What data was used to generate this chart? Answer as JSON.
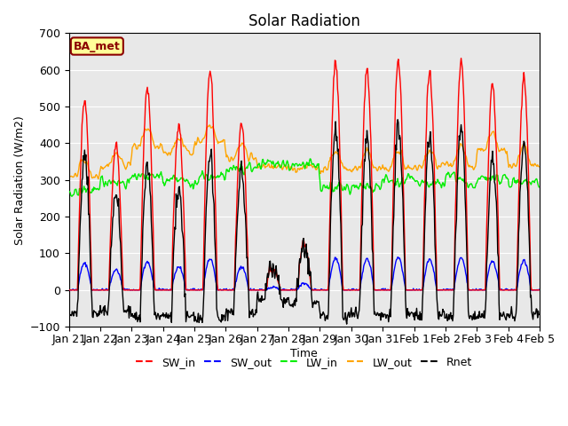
{
  "title": "Solar Radiation",
  "ylabel": "Solar Radiation (W/m2)",
  "xlabel": "Time",
  "ylim": [
    -100,
    700
  ],
  "yticks": [
    -100,
    0,
    100,
    200,
    300,
    400,
    500,
    600,
    700
  ],
  "legend_label": "BA_met",
  "series": {
    "SW_in": {
      "color": "#FF0000",
      "lw": 1.0
    },
    "SW_out": {
      "color": "#0000FF",
      "lw": 1.0
    },
    "LW_in": {
      "color": "#00EE00",
      "lw": 1.0
    },
    "LW_out": {
      "color": "#FFA500",
      "lw": 1.0
    },
    "Rnet": {
      "color": "#000000",
      "lw": 1.0
    }
  },
  "bg_color": "#E8E8E8",
  "xtick_labels": [
    "Jan 21",
    "Jan 22",
    "Jan 23",
    "Jan 24",
    "Jan 25",
    "Jan 26",
    "Jan 27",
    "Jan 28",
    "Jan 29",
    "Jan 30",
    "Jan 31",
    "Feb 1",
    "Feb 2",
    "Feb 3",
    "Feb 4",
    "Feb 5"
  ],
  "num_days": 15,
  "pts_per_day": 48,
  "seed": 42,
  "peak_sw": [
    520,
    395,
    550,
    450,
    600,
    450,
    60,
    130,
    620,
    600,
    620,
    590,
    620,
    560,
    580
  ],
  "night_rnet": [
    -65,
    -55,
    -75,
    -70,
    -80,
    -60,
    -30,
    -35,
    -70,
    -65,
    -70,
    -65,
    -75,
    -70,
    -70
  ],
  "lw_in_day": [
    270,
    295,
    310,
    295,
    305,
    335,
    345,
    340,
    280,
    285,
    300,
    295,
    300,
    305,
    295
  ],
  "lw_out_day": [
    310,
    340,
    390,
    375,
    405,
    360,
    335,
    330,
    330,
    330,
    330,
    335,
    340,
    380,
    340
  ]
}
